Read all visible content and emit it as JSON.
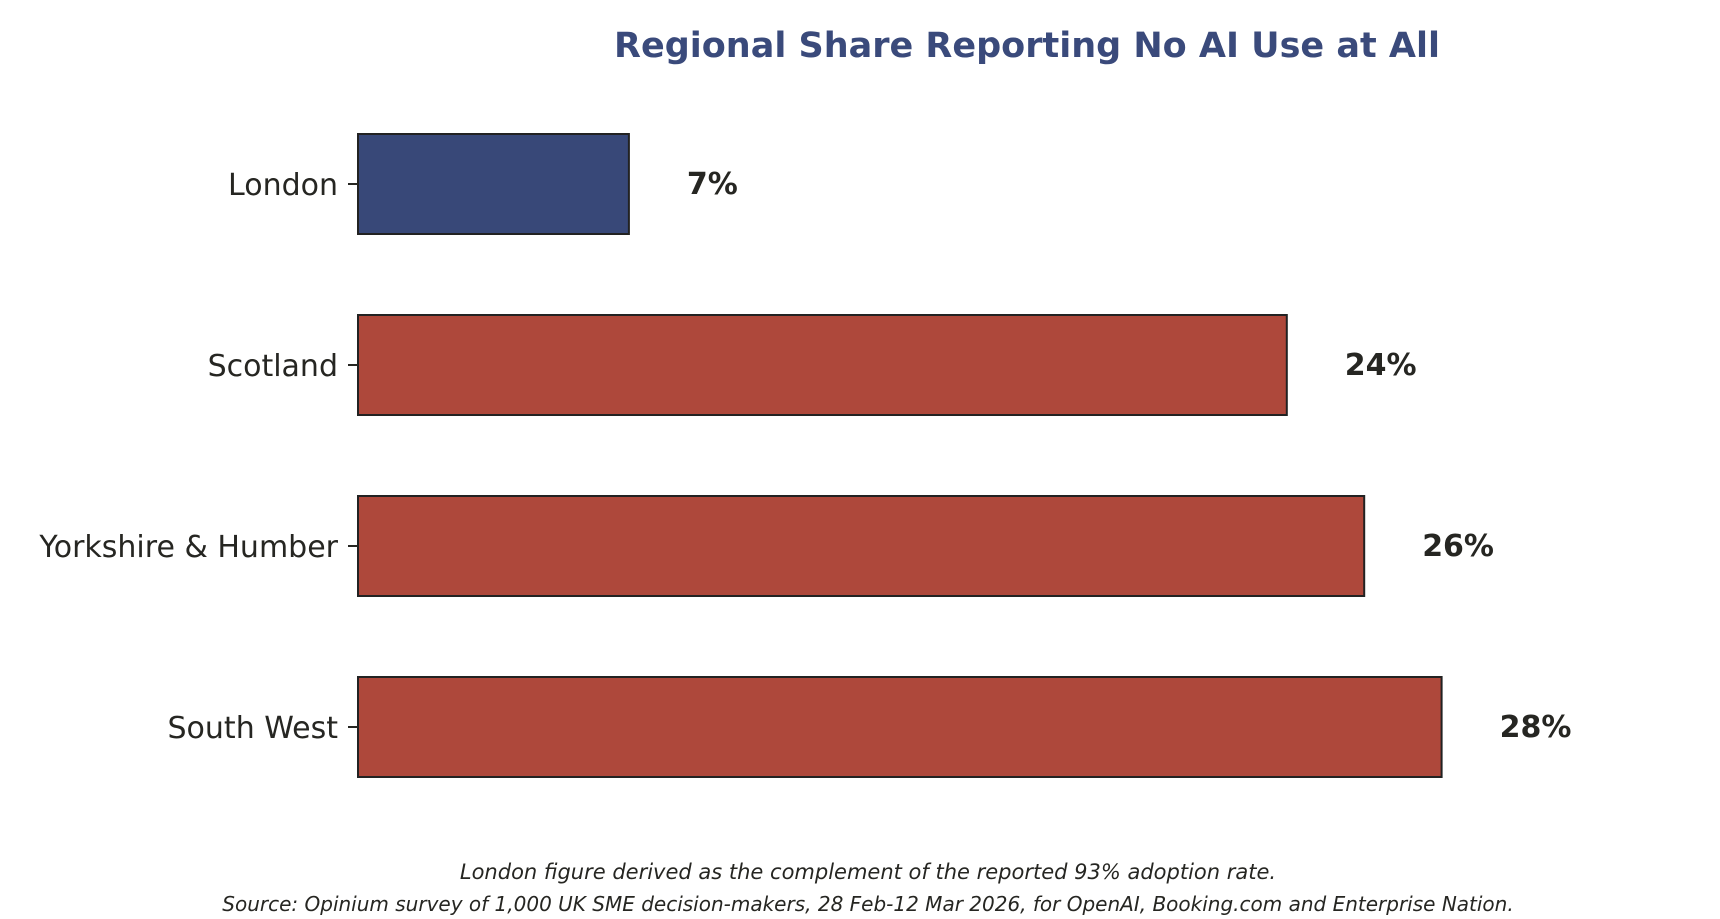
{
  "chart_data": {
    "type": "bar",
    "orientation": "horizontal",
    "title": "Regional Share Reporting No AI Use at All",
    "categories": [
      "London",
      "Scotland",
      "Yorkshire & Humber",
      "South West"
    ],
    "values": [
      7,
      24,
      26,
      28
    ],
    "value_labels": [
      "7%",
      "24%",
      "26%",
      "28%"
    ],
    "unit": "%",
    "xlim": [
      0,
      30
    ],
    "grid": false,
    "legend": "none",
    "xlabel": "",
    "ylabel": "",
    "highlight_category": "London"
  },
  "notes": {
    "derivation": "London figure derived as the complement of the reported 93% adoption rate.",
    "source": "Source: Opinium survey of 1,000 UK SME decision-makers, 28 Feb-12 Mar 2026, for OpenAI, Booking.com and Enterprise Nation."
  },
  "colors": {
    "title": "#3a4a7b",
    "highlight_bar": "#384878",
    "bar": "#ae483b",
    "bar_edge": "#222222",
    "text": "#262622"
  }
}
